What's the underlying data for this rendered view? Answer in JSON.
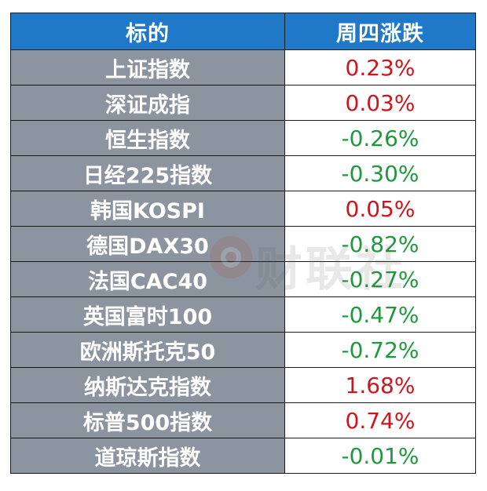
{
  "header": {
    "col_name": "标的",
    "col_change": "周四涨跌"
  },
  "rows": [
    {
      "name": "上证指数",
      "change": "0.23%",
      "direction": "up"
    },
    {
      "name": "深证成指",
      "change": "0.03%",
      "direction": "up"
    },
    {
      "name": "恒生指数",
      "change": "-0.26%",
      "direction": "down"
    },
    {
      "name": "日经225指数",
      "change": "-0.30%",
      "direction": "down"
    },
    {
      "name": "韩国KOSPI",
      "change": "0.05%",
      "direction": "up"
    },
    {
      "name": "德国DAX30",
      "change": "-0.82%",
      "direction": "down"
    },
    {
      "name": "法国CAC40",
      "change": "-0.27%",
      "direction": "down"
    },
    {
      "name": "英国富时100",
      "change": "-0.47%",
      "direction": "down"
    },
    {
      "name": "欧洲斯托克50",
      "change": "-0.72%",
      "direction": "down"
    },
    {
      "name": "纳斯达克指数",
      "change": "1.68%",
      "direction": "up"
    },
    {
      "name": "标普500指数",
      "change": "0.74%",
      "direction": "up"
    },
    {
      "name": "道琼斯指数",
      "change": "-0.01%",
      "direction": "down"
    }
  ],
  "watermark": {
    "text": "财联社"
  },
  "colors": {
    "header_bg": "#1f78c8",
    "name_bg": "#8c959f",
    "up": "#d0141b",
    "down": "#1e9a3c"
  }
}
